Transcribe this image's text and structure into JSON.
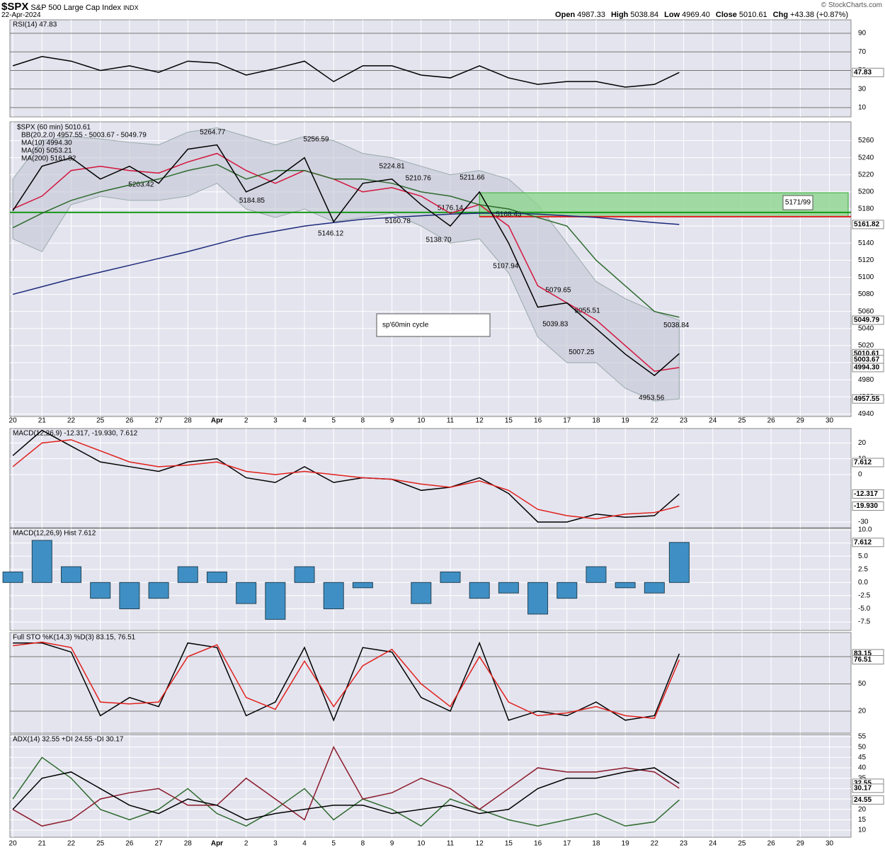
{
  "header": {
    "symbol": "$SPX",
    "name": "S&P 500 Large Cap Index",
    "exchange": "INDX",
    "date": "22-Apr-2024",
    "quote": [
      [
        "Open",
        "4987.33"
      ],
      [
        "High",
        "5038.84"
      ],
      [
        "Low",
        "4969.40"
      ],
      [
        "Close",
        "5010.61"
      ],
      [
        "Chg",
        "+43.38 (+0.87%)"
      ]
    ],
    "credit": "© StockCharts.com"
  },
  "chart_data": [
    {
      "type": "line",
      "title": "RSI(14) 47.83",
      "x": [
        0,
        1,
        2,
        3,
        4,
        5,
        6,
        7,
        8,
        9,
        10,
        11,
        12,
        13,
        14,
        15,
        16,
        17,
        18,
        19,
        20,
        21,
        22,
        22.85
      ],
      "series": [
        {
          "color": "#000000",
          "values": [
            55,
            65,
            60,
            50,
            55,
            48,
            60,
            58,
            45,
            52,
            60,
            38,
            55,
            55,
            45,
            42,
            55,
            42,
            35,
            38,
            38,
            32,
            35,
            47.83
          ]
        }
      ],
      "xlim": [
        -0.1,
        28.74
      ],
      "ylim": [
        0,
        104.5
      ],
      "yticks": [
        10,
        30,
        50,
        70,
        90
      ],
      "end_labels": [
        {
          "value": 47.83,
          "label": "47.83"
        }
      ]
    },
    {
      "type": "price",
      "title": "$SPX (60 min) 5010.61",
      "x": [
        0,
        1,
        2,
        3,
        4,
        5,
        6,
        7,
        8,
        9,
        10,
        11,
        12,
        13,
        14,
        15,
        16,
        17,
        18,
        19,
        20,
        21,
        22,
        22.85
      ],
      "band": {
        "name": "BB(20,2.0) 4957.55 - 5003.67 - 5049.79",
        "color": "#c3c7d3",
        "upper": [
          5215,
          5260,
          5265,
          5262,
          5258,
          5255,
          5270,
          5275,
          5265,
          5255,
          5265,
          5260,
          5245,
          5240,
          5230,
          5220,
          5225,
          5215,
          5185,
          5140,
          5095,
          5075,
          5060,
          5049.79
        ],
        "lower": [
          5145,
          5130,
          5185,
          5195,
          5190,
          5190,
          5195,
          5210,
          5180,
          5170,
          5180,
          5165,
          5170,
          5175,
          5160,
          5140,
          5145,
          5105,
          5030,
          5000,
          5000,
          4970,
          4955,
          4957.55
        ]
      },
      "series": [
        {
          "name": "MA(10) 4994.30",
          "color": "#d4143c",
          "values": [
            5180,
            5195,
            5225,
            5230,
            5225,
            5222,
            5235,
            5245,
            5225,
            5210,
            5225,
            5215,
            5200,
            5205,
            5195,
            5175,
            5185,
            5160,
            5090,
            5070,
            5050,
            5020,
            4990,
            4994.3
          ]
        },
        {
          "name": "MA(50) 5053.21",
          "color": "#2e6b2e",
          "values": [
            5158,
            5175,
            5190,
            5200,
            5208,
            5215,
            5225,
            5232,
            5215,
            5225,
            5225,
            5215,
            5215,
            5210,
            5200,
            5195,
            5185,
            5180,
            5170,
            5160,
            5120,
            5090,
            5060,
            5053.21
          ]
        },
        {
          "name": "MA(200) 5161.82",
          "color": "#1c2a7a",
          "values": [
            5080,
            5089,
            5098,
            5106,
            5114,
            5122,
            5130,
            5139,
            5148,
            5154,
            5160,
            5164,
            5168,
            5170,
            5172,
            5174,
            5175,
            5175,
            5174,
            5172,
            5170,
            5167,
            5164,
            5161.82
          ]
        },
        {
          "name": "$SPX",
          "color": "#000000",
          "values": [
            5178,
            5230,
            5240,
            5215,
            5230,
            5210,
            5250,
            5255,
            5200,
            5215,
            5240,
            5165,
            5210,
            5215,
            5185,
            5160,
            5200,
            5140,
            5065,
            5070,
            5040,
            5010,
            4985,
            5010.61
          ]
        }
      ],
      "xlim": [
        -0.1,
        28.74
      ],
      "ylim": [
        4937,
        5282
      ],
      "yticks": [
        4940,
        4960,
        4980,
        5000,
        5020,
        5040,
        5060,
        5080,
        5100,
        5120,
        5140,
        5160,
        5180,
        5200,
        5220,
        5240,
        5260
      ],
      "xticks": [
        {
          "value": 0,
          "label": "20"
        },
        {
          "value": 1,
          "label": "21"
        },
        {
          "value": 2,
          "label": "22"
        },
        {
          "value": 3,
          "label": "25"
        },
        {
          "value": 4,
          "label": "26"
        },
        {
          "value": 5,
          "label": "27"
        },
        {
          "value": 6,
          "label": "28"
        },
        {
          "value": 7,
          "label": "Apr"
        },
        {
          "value": 8,
          "label": "2"
        },
        {
          "value": 9,
          "label": "3"
        },
        {
          "value": 10,
          "label": "4"
        },
        {
          "value": 11,
          "label": "5"
        },
        {
          "value": 12,
          "label": "8"
        },
        {
          "value": 13,
          "label": "9"
        },
        {
          "value": 14,
          "label": "10"
        },
        {
          "value": 15,
          "label": "11"
        },
        {
          "value": 16,
          "label": "12"
        },
        {
          "value": 17,
          "label": "15"
        },
        {
          "value": 18,
          "label": "16"
        },
        {
          "value": 19,
          "label": "17"
        },
        {
          "value": 20,
          "label": "18"
        },
        {
          "value": 21,
          "label": "19"
        },
        {
          "value": 22,
          "label": "22"
        },
        {
          "value": 23,
          "label": "23"
        },
        {
          "value": 24,
          "label": "24"
        },
        {
          "value": 25,
          "label": "25"
        },
        {
          "value": 26,
          "label": "26"
        },
        {
          "value": 27,
          "label": "29"
        },
        {
          "value": 28,
          "label": "30"
        }
      ],
      "hline": 5176,
      "zone": {
        "from": 16,
        "low": 5171,
        "high": 5199,
        "label": "5171/99"
      },
      "note": "sp'60min cycle",
      "annotations": [
        {
          "x": 6.85,
          "value": 5264.77,
          "label": "5264.77"
        },
        {
          "x": 10.4,
          "value": 5256.59,
          "label": "5256.59"
        },
        {
          "x": 13.0,
          "value": 5224.81,
          "label": "5224.81"
        },
        {
          "x": 13.9,
          "value": 5210.76,
          "label": "5210.76"
        },
        {
          "x": 15.75,
          "value": 5211.66,
          "label": "5211.66"
        },
        {
          "x": 4.4,
          "value": 5203.42,
          "label": "5203.42"
        },
        {
          "x": 8.2,
          "value": 5184.85,
          "label": "5184.85"
        },
        {
          "x": 15.0,
          "value": 5176.14,
          "label": "5176.14"
        },
        {
          "x": 17.0,
          "value": 5168.43,
          "label": "5168.43"
        },
        {
          "x": 10.9,
          "value": 5146.12,
          "label": "5146.12"
        },
        {
          "x": 13.2,
          "value": 5160.78,
          "label": "5160.78"
        },
        {
          "x": 14.6,
          "value": 5138.7,
          "label": "5138.70"
        },
        {
          "x": 16.9,
          "value": 5107.94,
          "label": "5107.94"
        },
        {
          "x": 18.7,
          "value": 5079.65,
          "label": "5079.65"
        },
        {
          "x": 19.7,
          "value": 5055.51,
          "label": "5055.51"
        },
        {
          "x": 18.6,
          "value": 5039.83,
          "label": "5039.83"
        },
        {
          "x": 19.5,
          "value": 5007.25,
          "label": "5007.25"
        },
        {
          "x": 22.75,
          "value": 5038.84,
          "label": "5038.84"
        },
        {
          "x": 21.9,
          "value": 4953.56,
          "label": "4953.56"
        }
      ],
      "end_labels": [
        {
          "value": 5161.82,
          "label": "5161.82"
        },
        {
          "value": 5049.79,
          "label": "5049.79"
        },
        {
          "value": 5010.61,
          "label": "5010.61"
        },
        {
          "value": 5003.67,
          "label": "5003.67"
        },
        {
          "value": 4994.3,
          "label": "4994.30"
        },
        {
          "value": 4957.55,
          "label": "4957.55"
        }
      ]
    },
    {
      "type": "line",
      "title": "MACD(12,26,9) -12.317, -19.930, 7.612",
      "x": [
        0,
        1,
        2,
        3,
        4,
        5,
        6,
        7,
        8,
        9,
        10,
        11,
        12,
        13,
        14,
        15,
        16,
        17,
        18,
        19,
        20,
        21,
        22,
        22.85
      ],
      "series": [
        {
          "color": "#000000",
          "values": [
            12,
            28,
            18,
            8,
            5,
            2,
            8,
            10,
            -2,
            -5,
            5,
            -5,
            -2,
            -3,
            -10,
            -8,
            -2,
            -12,
            -30,
            -30,
            -25,
            -27,
            -26,
            -12.317
          ]
        },
        {
          "color": "#e0201a",
          "values": [
            5,
            20,
            22,
            15,
            8,
            5,
            6,
            8,
            2,
            0,
            2,
            0,
            -2,
            -3,
            -6,
            -8,
            -4,
            -10,
            -22,
            -26,
            -28,
            -25,
            -24,
            -19.93
          ]
        }
      ],
      "xlim": [
        -0.1,
        28.74
      ],
      "ylim": [
        -33.6,
        29.1
      ],
      "yticks": [
        -30,
        0,
        10,
        20
      ],
      "end_labels": [
        {
          "value": 7.612,
          "label": "7.612"
        },
        {
          "value": -12.317,
          "label": "-12.317"
        },
        {
          "value": -19.93,
          "label": "-19.930"
        }
      ]
    },
    {
      "type": "hist",
      "title": "MACD(12,26,9) Hist 7.612",
      "x": [
        0,
        1,
        2,
        3,
        4,
        5,
        6,
        7,
        8,
        9,
        10,
        11,
        12,
        13,
        14,
        15,
        16,
        17,
        18,
        19,
        20,
        21,
        22,
        22.85
      ],
      "series": [
        {
          "color": "#3f8fc4",
          "values": [
            2,
            8,
            3,
            -3,
            -5,
            -3,
            3,
            2,
            -4,
            -7,
            3,
            -5,
            -1,
            0,
            -4,
            2,
            -3,
            -2,
            -6,
            -3,
            3,
            -1,
            -2,
            7.612
          ]
        }
      ],
      "xlim": [
        -0.1,
        28.74
      ],
      "ylim": [
        -9.1,
        10.27
      ],
      "yticks": [
        {
          "value": -7.5,
          "label": "-7.5"
        },
        {
          "value": -5,
          "label": "-5.0"
        },
        {
          "value": -2.5,
          "label": "-2.5"
        },
        {
          "value": 0,
          "label": "0.0"
        },
        {
          "value": 2.5,
          "label": "2.5"
        },
        {
          "value": 5,
          "label": "5.0"
        },
        {
          "value": 7.5,
          "label": "7.5"
        },
        {
          "value": 10,
          "label": "10.0"
        }
      ],
      "end_labels": [
        {
          "value": 7.612,
          "label": "7.612"
        }
      ]
    },
    {
      "type": "line",
      "title": "Full STO %K(14,3) %D(3) 83.15, 76.51",
      "x": [
        0,
        1,
        2,
        3,
        4,
        5,
        6,
        7,
        8,
        9,
        10,
        11,
        12,
        13,
        14,
        15,
        16,
        17,
        18,
        19,
        20,
        21,
        22,
        22.85
      ],
      "series": [
        {
          "color": "#000000",
          "values": [
            95,
            95,
            85,
            15,
            35,
            25,
            95,
            90,
            15,
            30,
            90,
            10,
            90,
            85,
            35,
            20,
            95,
            10,
            20,
            15,
            30,
            10,
            15,
            83.15
          ]
        },
        {
          "color": "#e0201a",
          "values": [
            92,
            96,
            90,
            30,
            28,
            30,
            80,
            93,
            35,
            22,
            75,
            25,
            70,
            88,
            50,
            25,
            80,
            30,
            15,
            18,
            25,
            15,
            12,
            76.51
          ]
        }
      ],
      "xlim": [
        -0.1,
        28.74
      ],
      "ylim": [
        -4.2,
        106.5
      ],
      "yticks": [
        20,
        50,
        80
      ],
      "end_labels": [
        {
          "value": 83.15,
          "label": "83.15"
        },
        {
          "value": 76.51,
          "label": "76.51"
        }
      ]
    },
    {
      "type": "line",
      "title": "ADX(14) 32.55 +DI 24.55 -DI 30.17",
      "x": [
        0,
        1,
        2,
        3,
        4,
        5,
        6,
        7,
        8,
        9,
        10,
        11,
        12,
        13,
        14,
        15,
        16,
        17,
        18,
        19,
        20,
        21,
        22,
        22.85
      ],
      "series": [
        {
          "color": "#2e6b2e",
          "values": [
            25,
            45,
            35,
            20,
            15,
            20,
            30,
            18,
            12,
            20,
            30,
            15,
            25,
            20,
            12,
            25,
            20,
            15,
            12,
            15,
            18,
            12,
            14,
            24.55
          ]
        },
        {
          "color": "#8b1a2a",
          "values": [
            20,
            12,
            15,
            25,
            28,
            30,
            22,
            22,
            35,
            25,
            15,
            50,
            25,
            28,
            35,
            30,
            20,
            30,
            40,
            38,
            38,
            40,
            38,
            30.17
          ]
        },
        {
          "color": "#000000",
          "values": [
            20,
            35,
            38,
            30,
            22,
            18,
            25,
            22,
            15,
            18,
            20,
            22,
            22,
            18,
            20,
            22,
            18,
            20,
            30,
            35,
            35,
            38,
            40,
            32.55
          ]
        }
      ],
      "xlim": [
        -0.1,
        28.74
      ],
      "ylim": [
        6.6,
        56
      ],
      "yticks": [
        10,
        15,
        20,
        25,
        30,
        35,
        40,
        45,
        50,
        55
      ],
      "end_labels": [
        {
          "value": 32.55,
          "label": "32.55"
        },
        {
          "value": 30.17,
          "label": "30.17"
        },
        {
          "value": 24.55,
          "label": "24.55"
        }
      ]
    }
  ]
}
